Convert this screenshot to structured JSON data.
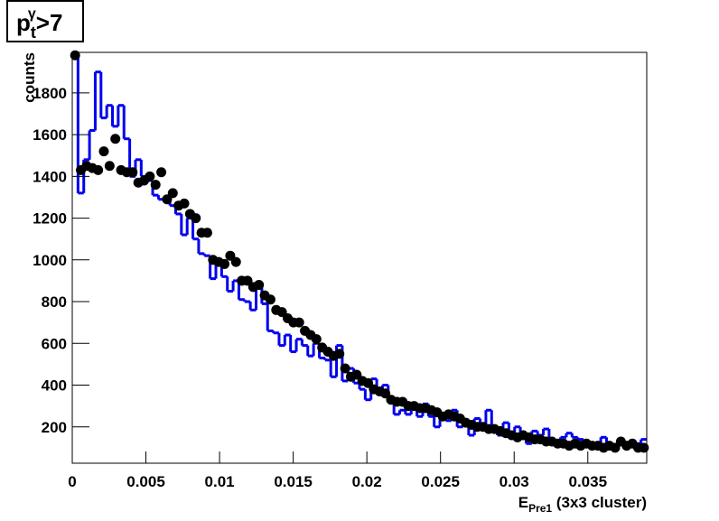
{
  "chart_data": {
    "type": "histogram",
    "title": {
      "base": "p",
      "sub": "t",
      "sup": "γ",
      "rest": ">7"
    },
    "xlabel": {
      "base": "E",
      "sub": "Pre1",
      "rest": " (3x3 cluster)"
    },
    "ylabel": "counts",
    "bins": [
      0,
      0.00039,
      0.00078,
      0.00117,
      0.00156,
      0.00195,
      0.00234,
      0.00273,
      0.00312,
      0.00351,
      0.0039,
      0.00429,
      0.00468,
      0.00507,
      0.00546,
      0.00585,
      0.00624,
      0.00663,
      0.00702,
      0.00741,
      0.0078,
      0.00819,
      0.00858,
      0.00897,
      0.00936,
      0.00975,
      0.01014,
      0.01053,
      0.01092,
      0.01131,
      0.0117,
      0.01209,
      0.01248,
      0.01287,
      0.01326,
      0.01365,
      0.01404,
      0.01443,
      0.01482,
      0.01521,
      0.0156,
      0.01599,
      0.01638,
      0.01677,
      0.01716,
      0.01755,
      0.01794,
      0.01833,
      0.01872,
      0.01911,
      0.0195,
      0.01989,
      0.02028,
      0.02067,
      0.02106,
      0.02145,
      0.02184,
      0.02223,
      0.02262,
      0.02301,
      0.0234,
      0.02379,
      0.02418,
      0.02457,
      0.02496,
      0.02535,
      0.02574,
      0.02613,
      0.02652,
      0.02691,
      0.0273,
      0.02769,
      0.02808,
      0.02847,
      0.02886,
      0.02925,
      0.02964,
      0.03003,
      0.03042,
      0.03081,
      0.0312,
      0.03159,
      0.03198,
      0.03237,
      0.03276,
      0.03315,
      0.03354,
      0.03393,
      0.03432,
      0.03471,
      0.0351,
      0.03549,
      0.03588,
      0.03627,
      0.03666,
      0.03705,
      0.03744,
      0.03783,
      0.03822,
      0.03861,
      0.039
    ],
    "series": [
      {
        "style": "step",
        "color": "#0000ee",
        "values": [
          1990,
          1320,
          1480,
          1620,
          1900,
          1680,
          1740,
          1640,
          1740,
          1580,
          1400,
          1480,
          1400,
          1380,
          1310,
          1290,
          1300,
          1260,
          1220,
          1120,
          1200,
          1100,
          1030,
          1020,
          910,
          1000,
          920,
          850,
          900,
          810,
          800,
          760,
          880,
          790,
          660,
          650,
          590,
          640,
          560,
          620,
          590,
          540,
          600,
          530,
          520,
          440,
          590,
          420,
          480,
          410,
          380,
          330,
          430,
          370,
          400,
          320,
          260,
          280,
          260,
          290,
          250,
          310,
          250,
          200,
          240,
          230,
          280,
          200,
          230,
          160,
          240,
          200,
          280,
          180,
          160,
          220,
          170,
          200,
          160,
          120,
          180,
          160,
          190,
          120,
          120,
          150,
          170,
          150,
          140,
          120,
          100,
          120,
          150,
          100,
          90,
          130,
          120,
          110,
          120,
          140
        ]
      },
      {
        "style": "marker",
        "color": "#000000",
        "values": [
          1980,
          1430,
          1450,
          1440,
          1430,
          1520,
          1450,
          1580,
          1430,
          1420,
          1420,
          1370,
          1380,
          1400,
          1360,
          1420,
          1290,
          1320,
          1260,
          1270,
          1220,
          1200,
          1130,
          1130,
          1000,
          990,
          980,
          1020,
          990,
          900,
          900,
          870,
          880,
          830,
          810,
          760,
          750,
          720,
          700,
          700,
          660,
          640,
          620,
          580,
          560,
          540,
          550,
          480,
          440,
          450,
          420,
          410,
          380,
          370,
          360,
          330,
          320,
          320,
          300,
          300,
          290,
          290,
          280,
          270,
          250,
          260,
          250,
          240,
          220,
          210,
          200,
          200,
          190,
          190,
          180,
          170,
          160,
          150,
          160,
          150,
          140,
          140,
          130,
          130,
          120,
          120,
          110,
          120,
          110,
          120,
          110,
          110,
          100,
          110,
          100,
          130,
          110,
          120,
          100,
          100
        ]
      }
    ],
    "xlim": [
      0,
      0.039
    ],
    "ylim": [
      26,
      1994
    ],
    "xticks": [
      0,
      0.005,
      0.01,
      0.015,
      0.02,
      0.025,
      0.03,
      0.035
    ],
    "yticks": [
      200,
      400,
      600,
      800,
      1000,
      1200,
      1400,
      1600,
      1800
    ],
    "grid": false
  }
}
